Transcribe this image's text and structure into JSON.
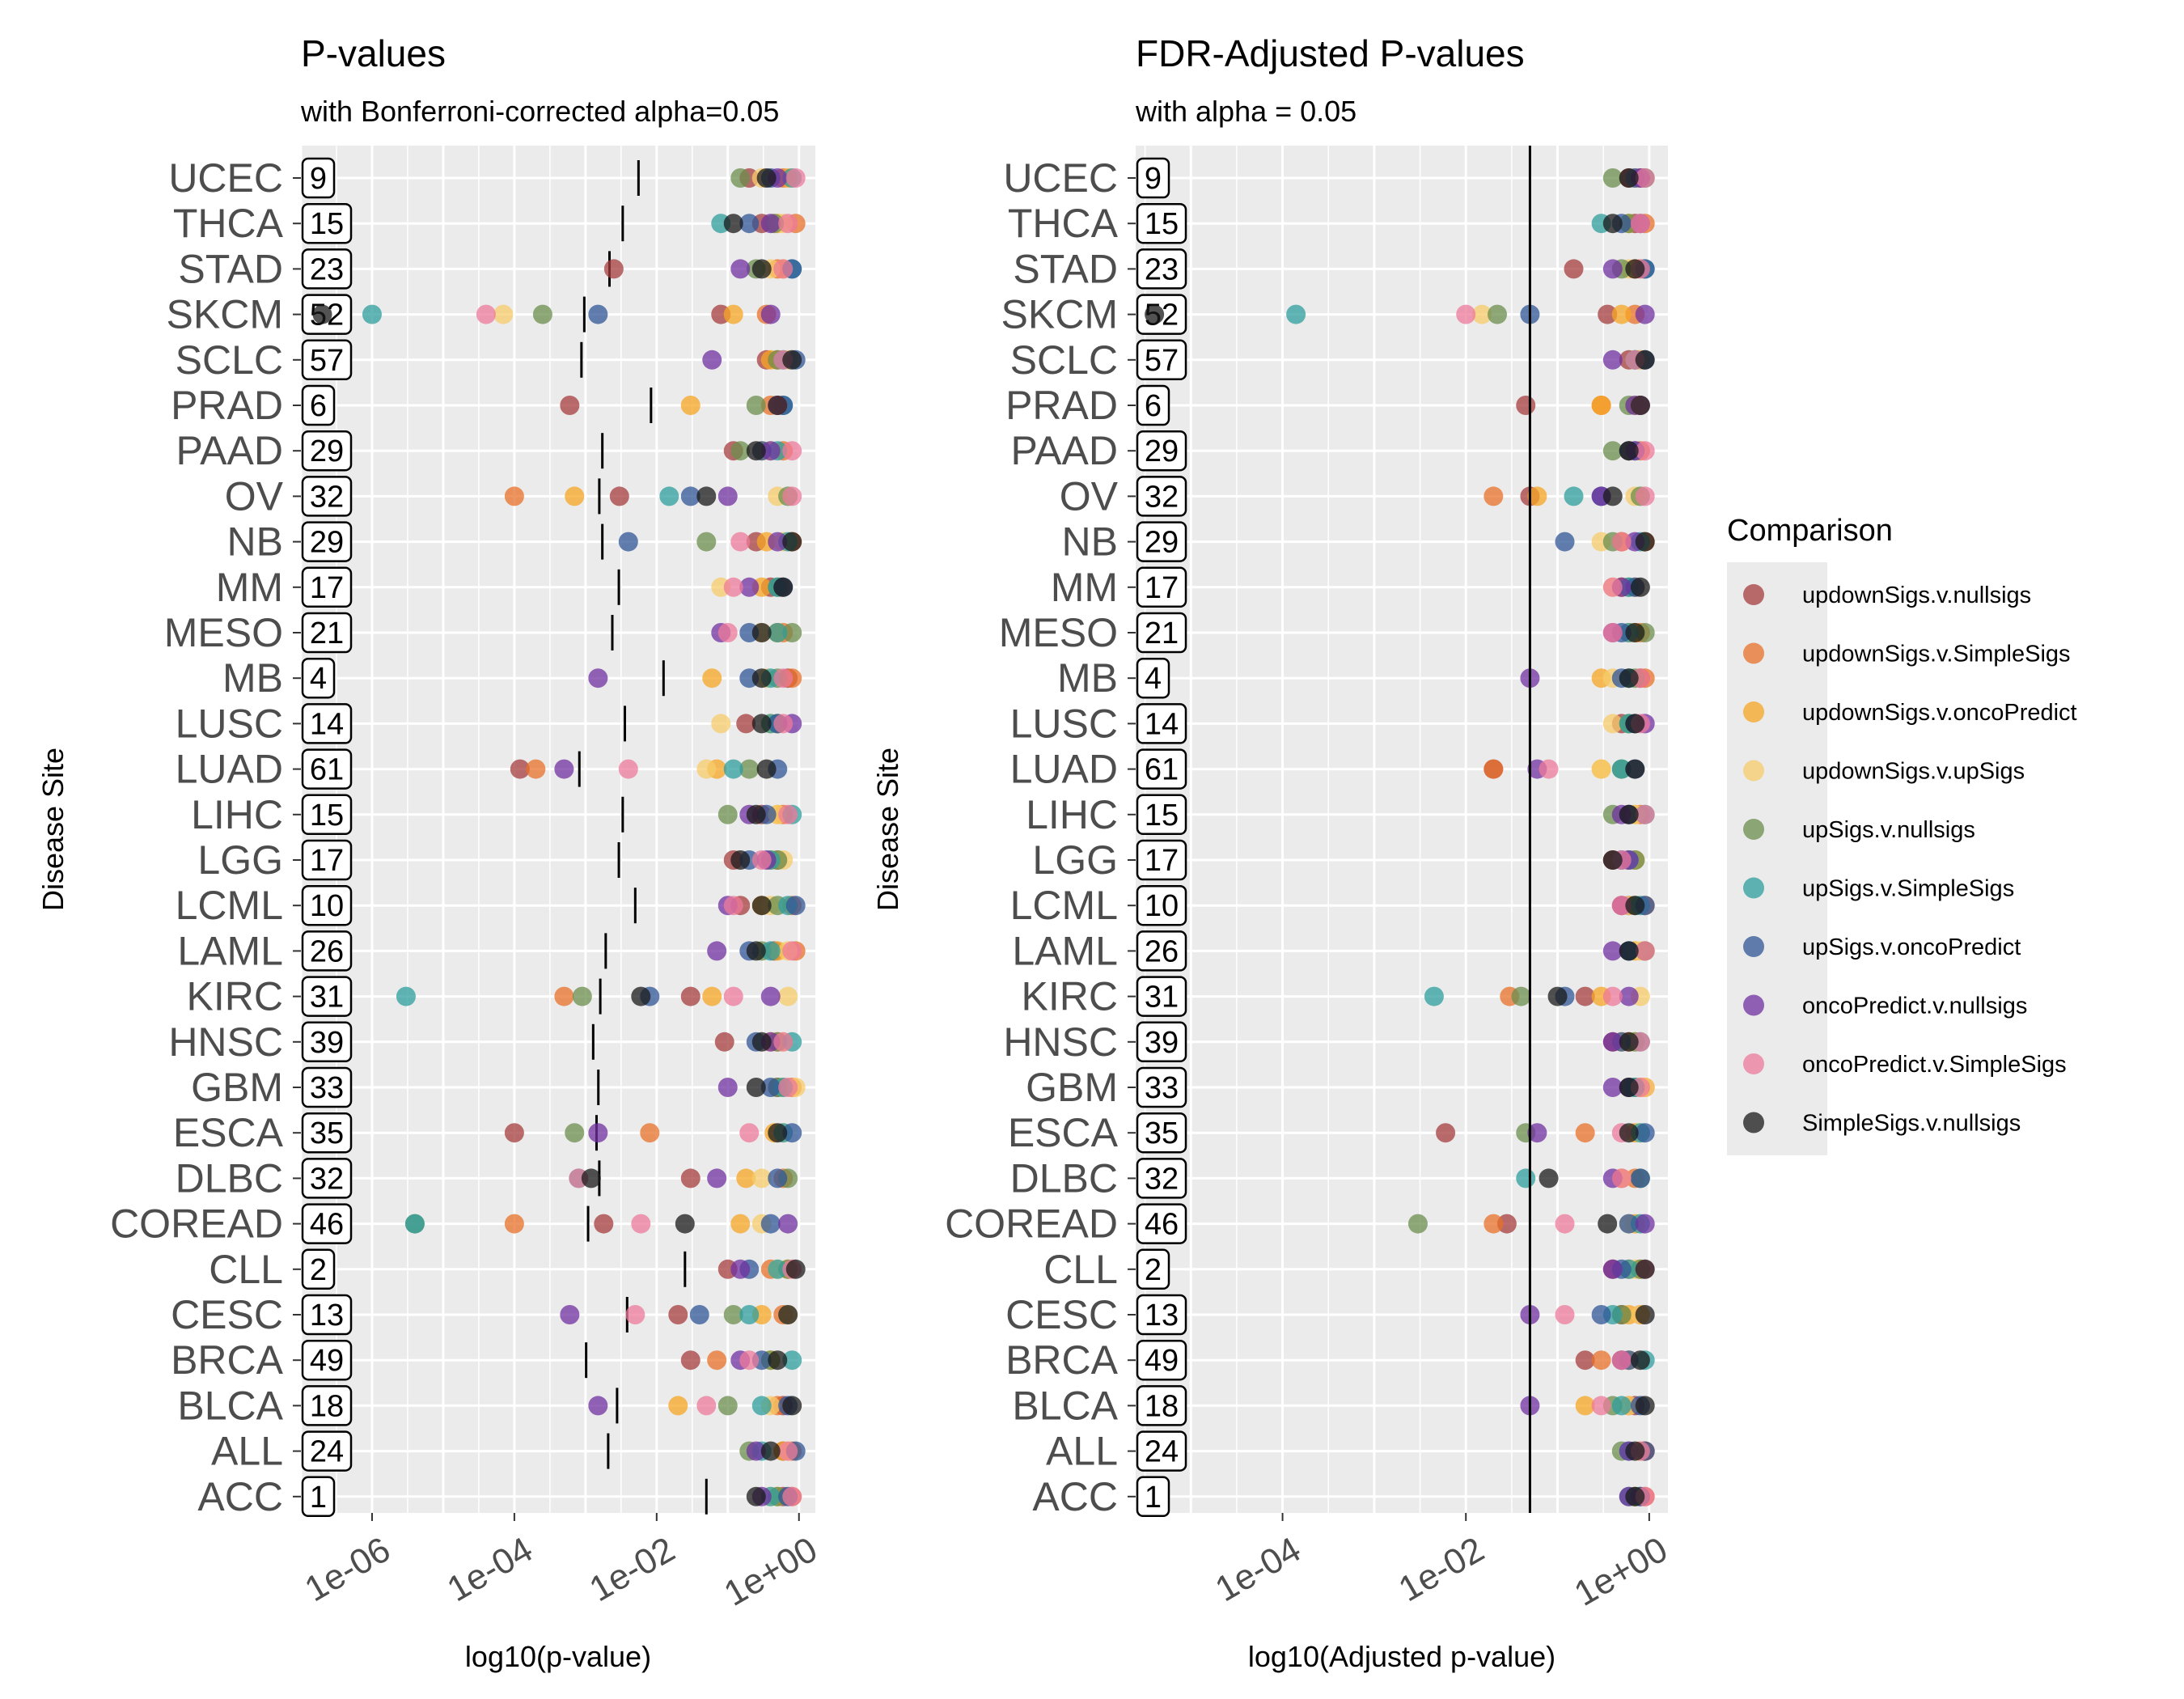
{
  "chart_data": [
    {
      "type": "scatter",
      "title": "P-values",
      "subtitle": "with Bonferroni-corrected alpha=0.05",
      "xlabel": "log10(p-value)",
      "ylabel": "Disease Site",
      "x_scale": "log10",
      "xlim": [
        1e-07,
        1.7
      ],
      "xticks": [
        "1e-06",
        "1e-04",
        "1e-02",
        "1e+00"
      ],
      "grid": true,
      "reference": "per-site Bonferroni threshold (0.05 / n), drawn as a short vertical segment",
      "categories": [
        "UCEC",
        "THCA",
        "STAD",
        "SKCM",
        "SCLC",
        "PRAD",
        "PAAD",
        "OV",
        "NB",
        "MM",
        "MESO",
        "MB",
        "LUSC",
        "LUAD",
        "LIHC",
        "LGG",
        "LCML",
        "LAML",
        "KIRC",
        "HNSC",
        "GBM",
        "ESCA",
        "DLBC",
        "COREAD",
        "CLL",
        "CESC",
        "BRCA",
        "BLCA",
        "ALL",
        "ACC"
      ],
      "counts": [
        9,
        15,
        23,
        52,
        57,
        6,
        29,
        32,
        29,
        17,
        21,
        4,
        14,
        61,
        15,
        17,
        10,
        26,
        31,
        39,
        33,
        35,
        32,
        46,
        2,
        13,
        49,
        18,
        24,
        1
      ],
      "series": [
        {
          "name": "updownSigs.v.nullsigs",
          "color": "#A63C3C",
          "values": [
            0.2,
            0.3,
            0.0025,
            0.08,
            0.35,
            0.0006,
            0.12,
            0.003,
            0.25,
            0.4,
            0.5,
            0.7,
            0.18,
            0.00012,
            0.3,
            0.12,
            0.15,
            0.45,
            0.03,
            0.09,
            0.5,
            0.0001,
            0.03,
            0.0018,
            0.1,
            0.02,
            0.03,
            0.6,
            0.6,
            0.6
          ]
        },
        {
          "name": "updownSigs.v.SimpleSigs",
          "color": "#E8722A",
          "values": [
            0.6,
            0.9,
            0.5,
            0.35,
            0.5,
            0.4,
            0.6,
            0.0001,
            0.8,
            0.55,
            0.6,
            0.8,
            0.5,
            0.0002,
            0.6,
            0.5,
            0.8,
            0.9,
            0.0005,
            0.5,
            0.8,
            0.008,
            0.6,
            0.0001,
            0.4,
            0.6,
            0.07,
            0.5,
            0.8,
            0.8
          ]
        },
        {
          "name": "updownSigs.v.oncoPredict",
          "color": "#F5A623",
          "values": [
            0.7,
            0.5,
            0.6,
            0.12,
            0.4,
            0.03,
            0.3,
            0.0007,
            0.35,
            0.3,
            0.5,
            0.06,
            0.4,
            0.07,
            0.5,
            0.4,
            0.3,
            0.5,
            0.06,
            0.4,
            0.6,
            0.45,
            0.18,
            0.15,
            0.7,
            0.3,
            0.4,
            0.02,
            0.6,
            0.5
          ]
        },
        {
          "name": "updownSigs.v.upSigs",
          "color": "#F7CC6B",
          "values": [
            0.3,
            0.6,
            0.4,
            7e-05,
            0.7,
            0.5,
            0.4,
            0.5,
            0.6,
            0.08,
            0.3,
            0.35,
            0.08,
            0.05,
            0.5,
            0.6,
            0.4,
            0.7,
            0.7,
            0.6,
            0.9,
            0.6,
            0.3,
            0.3,
            0.5,
            0.7,
            0.4,
            0.4,
            0.7,
            0.4
          ]
        },
        {
          "name": "upSigs.v.nullsigs",
          "color": "#6B8E4E",
          "values": [
            0.15,
            0.45,
            0.25,
            0.00025,
            0.5,
            0.25,
            0.15,
            0.7,
            0.05,
            0.5,
            0.8,
            0.5,
            0.5,
            0.2,
            0.1,
            0.5,
            0.5,
            0.3,
            0.0009,
            0.5,
            0.5,
            0.0007,
            0.7,
            4e-06,
            0.7,
            0.12,
            0.4,
            0.1,
            0.2,
            0.5
          ]
        },
        {
          "name": "upSigs.v.SimpleSigs",
          "color": "#2E9E9E",
          "values": [
            0.8,
            0.08,
            0.8,
            1e-06,
            0.6,
            0.6,
            0.5,
            0.015,
            0.7,
            0.5,
            0.5,
            0.4,
            0.4,
            0.12,
            0.8,
            0.4,
            0.7,
            0.4,
            3e-06,
            0.8,
            0.6,
            0.6,
            0.0008,
            4e-06,
            0.5,
            0.2,
            0.8,
            0.3,
            0.3,
            0.4
          ]
        },
        {
          "name": "upSigs.v.oncoPredict",
          "color": "#2F5597",
          "values": [
            0.4,
            0.2,
            0.8,
            0.0015,
            0.9,
            0.6,
            0.3,
            0.03,
            0.004,
            0.6,
            0.2,
            0.2,
            0.5,
            0.5,
            0.35,
            0.2,
            0.9,
            0.2,
            0.008,
            0.25,
            0.4,
            0.8,
            0.5,
            0.4,
            0.2,
            0.04,
            0.3,
            0.7,
            0.9,
            0.7
          ]
        },
        {
          "name": "oncoPredict.v.nullsigs",
          "color": "#7030A0",
          "values": [
            0.5,
            0.4,
            0.15,
            0.4,
            0.06,
            0.5,
            0.4,
            0.1,
            0.5,
            0.2,
            0.08,
            0.0015,
            0.8,
            0.0005,
            0.2,
            0.35,
            0.1,
            0.07,
            0.4,
            0.4,
            0.1,
            0.0015,
            0.07,
            0.7,
            0.15,
            0.0006,
            0.15,
            0.0015,
            0.25,
            0.3
          ]
        },
        {
          "name": "oncoPredict.v.SimpleSigs",
          "color": "#EE7A9B",
          "values": [
            0.9,
            0.7,
            0.6,
            4e-05,
            0.6,
            0.5,
            0.8,
            0.8,
            0.15,
            0.12,
            0.1,
            0.6,
            0.6,
            0.004,
            0.7,
            0.3,
            0.12,
            0.8,
            0.12,
            0.6,
            0.7,
            0.2,
            0.0008,
            0.006,
            0.8,
            0.005,
            0.2,
            0.05,
            0.7,
            0.8
          ]
        },
        {
          "name": "SimpleSigs.v.nullsigs",
          "color": "#1a1a1a",
          "values": [
            0.35,
            0.12,
            0.3,
            2e-07,
            0.8,
            0.5,
            0.25,
            0.05,
            0.8,
            0.6,
            0.3,
            0.3,
            0.3,
            0.35,
            0.25,
            0.15,
            0.3,
            0.25,
            0.006,
            0.3,
            0.25,
            0.5,
            0.0012,
            0.025,
            0.9,
            0.7,
            0.5,
            0.8,
            0.4,
            0.25
          ]
        }
      ]
    },
    {
      "type": "scatter",
      "title": "FDR-Adjusted P-values",
      "subtitle": "with alpha = 0.05",
      "xlabel": "log10(Adjusted p-value)",
      "ylabel": "Disease Site",
      "x_scale": "log10",
      "xlim": [
        2.5e-06,
        1.6
      ],
      "xticks": [
        "1e-04",
        "1e-02",
        "1e+00"
      ],
      "grid": true,
      "reference_line_x": 0.05,
      "categories": [
        "UCEC",
        "THCA",
        "STAD",
        "SKCM",
        "SCLC",
        "PRAD",
        "PAAD",
        "OV",
        "NB",
        "MM",
        "MESO",
        "MB",
        "LUSC",
        "LUAD",
        "LIHC",
        "LGG",
        "LCML",
        "LAML",
        "KIRC",
        "HNSC",
        "GBM",
        "ESCA",
        "DLBC",
        "COREAD",
        "CLL",
        "CESC",
        "BRCA",
        "BLCA",
        "ALL",
        "ACC"
      ],
      "counts": [
        9,
        15,
        23,
        52,
        57,
        6,
        29,
        32,
        29,
        17,
        21,
        4,
        14,
        61,
        15,
        17,
        10,
        26,
        31,
        39,
        33,
        35,
        32,
        46,
        2,
        13,
        49,
        18,
        24,
        1
      ],
      "series": [
        {
          "name": "updownSigs.v.nullsigs",
          "color": "#A63C3C",
          "values": [
            0.6,
            0.7,
            0.15,
            0.35,
            0.6,
            0.045,
            0.6,
            0.05,
            0.5,
            0.5,
            0.6,
            0.8,
            0.5,
            0.02,
            0.6,
            0.4,
            0.6,
            0.6,
            0.2,
            0.4,
            0.6,
            0.006,
            0.5,
            0.028,
            0.4,
            0.5,
            0.2,
            0.7,
            0.9,
            0.8
          ]
        },
        {
          "name": "updownSigs.v.SimpleSigs",
          "color": "#E8722A",
          "values": [
            0.8,
            0.9,
            0.7,
            0.7,
            0.8,
            0.3,
            0.8,
            0.02,
            0.9,
            0.7,
            0.8,
            0.9,
            0.7,
            0.02,
            0.8,
            0.7,
            0.9,
            0.9,
            0.03,
            0.6,
            0.9,
            0.2,
            0.7,
            0.02,
            0.6,
            0.8,
            0.3,
            0.6,
            0.9,
            0.9
          ]
        },
        {
          "name": "updownSigs.v.oncoPredict",
          "color": "#F5A623",
          "values": [
            0.9,
            0.6,
            0.8,
            0.5,
            0.7,
            0.3,
            0.6,
            0.06,
            0.5,
            0.5,
            0.7,
            0.3,
            0.6,
            0.3,
            0.7,
            0.6,
            0.5,
            0.7,
            0.3,
            0.5,
            0.8,
            0.7,
            0.5,
            0.7,
            0.8,
            0.6,
            0.6,
            0.2,
            0.8,
            0.7
          ]
        },
        {
          "name": "updownSigs.v.upSigs",
          "color": "#F7CC6B",
          "values": [
            0.7,
            0.8,
            0.6,
            0.015,
            0.8,
            0.7,
            0.7,
            0.7,
            0.3,
            0.4,
            0.6,
            0.4,
            0.4,
            0.3,
            0.7,
            0.7,
            0.6,
            0.8,
            0.8,
            0.7,
            0.9,
            0.8,
            0.5,
            0.6,
            0.7,
            0.8,
            0.6,
            0.6,
            0.8,
            0.6
          ]
        },
        {
          "name": "upSigs.v.nullsigs",
          "color": "#6B8E4E",
          "values": [
            0.4,
            0.6,
            0.5,
            0.022,
            0.7,
            0.6,
            0.4,
            0.8,
            0.4,
            0.6,
            0.9,
            0.7,
            0.6,
            0.5,
            0.4,
            0.7,
            0.7,
            0.9,
            0.04,
            0.7,
            0.7,
            0.045,
            0.8,
            0.003,
            0.8,
            0.5,
            0.5,
            0.4,
            0.5,
            0.7
          ]
        },
        {
          "name": "upSigs.v.SimpleSigs",
          "color": "#2E9E9E",
          "values": [
            0.9,
            0.3,
            0.9,
            0.00014,
            0.7,
            0.8,
            0.7,
            0.15,
            0.8,
            0.6,
            0.6,
            0.6,
            0.6,
            0.5,
            0.9,
            0.6,
            0.8,
            0.6,
            0.0045,
            0.8,
            0.7,
            0.8,
            0.045,
            0.8,
            0.6,
            0.4,
            0.9,
            0.5,
            0.6,
            0.6
          ]
        },
        {
          "name": "upSigs.v.oncoPredict",
          "color": "#2F5597",
          "values": [
            0.7,
            0.5,
            0.9,
            0.05,
            0.9,
            0.8,
            0.6,
            0.3,
            0.12,
            0.7,
            0.5,
            0.5,
            0.7,
            0.7,
            0.6,
            0.5,
            0.9,
            0.6,
            0.12,
            0.5,
            0.6,
            0.9,
            0.8,
            0.6,
            0.5,
            0.3,
            0.6,
            0.8,
            0.9,
            0.8
          ]
        },
        {
          "name": "oncoPredict.v.nullsigs",
          "color": "#7030A0",
          "values": [
            0.8,
            0.8,
            0.4,
            0.9,
            0.4,
            0.7,
            0.7,
            0.3,
            0.7,
            0.5,
            0.4,
            0.05,
            0.9,
            0.06,
            0.5,
            0.6,
            0.5,
            0.4,
            0.6,
            0.4,
            0.4,
            0.06,
            0.4,
            0.9,
            0.4,
            0.05,
            0.5,
            0.05,
            0.6,
            0.6
          ]
        },
        {
          "name": "oncoPredict.v.SimpleSigs",
          "color": "#EE7A9B",
          "values": [
            0.9,
            0.8,
            0.8,
            0.01,
            0.7,
            0.8,
            0.9,
            0.9,
            0.5,
            0.4,
            0.4,
            0.8,
            0.8,
            0.08,
            0.9,
            0.5,
            0.5,
            0.9,
            0.4,
            0.8,
            0.8,
            0.5,
            0.5,
            0.12,
            0.9,
            0.12,
            0.5,
            0.3,
            0.8,
            0.9
          ]
        },
        {
          "name": "SimpleSigs.v.nullsigs",
          "color": "#1a1a1a",
          "values": [
            0.6,
            0.4,
            0.7,
            4e-06,
            0.9,
            0.8,
            0.6,
            0.4,
            0.9,
            0.8,
            0.7,
            0.6,
            0.7,
            0.7,
            0.6,
            0.4,
            0.7,
            0.6,
            0.1,
            0.6,
            0.6,
            0.6,
            0.08,
            0.35,
            0.9,
            0.9,
            0.8,
            0.9,
            0.7,
            0.7
          ]
        }
      ]
    }
  ],
  "legend": {
    "title": "Comparison",
    "items": [
      {
        "label": "updownSigs.v.nullsigs",
        "color": "#A63C3C"
      },
      {
        "label": "updownSigs.v.SimpleSigs",
        "color": "#E8722A"
      },
      {
        "label": "updownSigs.v.oncoPredict",
        "color": "#F5A623"
      },
      {
        "label": "updownSigs.v.upSigs",
        "color": "#F7CC6B"
      },
      {
        "label": "upSigs.v.nullsigs",
        "color": "#6B8E4E"
      },
      {
        "label": "upSigs.v.SimpleSigs",
        "color": "#2E9E9E"
      },
      {
        "label": "upSigs.v.oncoPredict",
        "color": "#2F5597"
      },
      {
        "label": "oncoPredict.v.nullsigs",
        "color": "#7030A0"
      },
      {
        "label": "oncoPredict.v.SimpleSigs",
        "color": "#EE7A9B"
      },
      {
        "label": "SimpleSigs.v.nullsigs",
        "color": "#1a1a1a"
      }
    ]
  },
  "colors": {
    "panel_bg": "#EBEBEB",
    "grid": "#FFFFFF",
    "text": "#000000",
    "tick_text": "#4D4D4D",
    "legend_bg": "#EBEBEB"
  }
}
